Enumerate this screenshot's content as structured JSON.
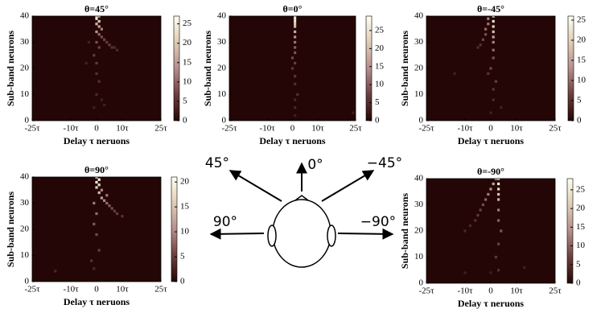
{
  "chart_data": [
    {
      "type": "heatmap",
      "title": "θ=45°",
      "xlabel": "Delay τ neruons",
      "ylabel": "Sub-band neurons",
      "xlim": [
        -25,
        25
      ],
      "ylim": [
        0,
        40
      ],
      "xticks": [
        {
          "value": -25,
          "label": "-25τ"
        },
        {
          "value": -10,
          "label": "-10τ"
        },
        0,
        {
          "value": 10,
          "label": "10τ"
        },
        {
          "value": 25,
          "label": "25τ"
        }
      ],
      "yticks": [
        0,
        10,
        20,
        30,
        40
      ],
      "clim": [
        0,
        27
      ],
      "cticks": [
        0,
        5,
        10,
        15,
        20,
        25
      ],
      "colormap": [
        "#240606",
        "#6e3e3e",
        "#b58e8e",
        "#e0cdb4",
        "#fffff2"
      ],
      "x": [
        0,
        1,
        0,
        1,
        0,
        1,
        2,
        0,
        1,
        2,
        3,
        4,
        5,
        6,
        7,
        8,
        0,
        1,
        -1,
        0,
        0,
        1,
        0,
        2,
        -1,
        3,
        -3,
        -4
      ],
      "y": [
        40,
        40,
        39,
        38,
        37,
        36,
        35,
        34,
        33,
        32,
        31,
        30,
        29,
        28,
        28,
        27,
        30,
        28,
        25,
        22,
        18,
        15,
        10,
        8,
        5,
        6,
        30,
        22
      ],
      "values": [
        25,
        22,
        24,
        20,
        18,
        16,
        12,
        14,
        10,
        8,
        7,
        6,
        6,
        5,
        4,
        4,
        8,
        7,
        6,
        6,
        5,
        5,
        4,
        3,
        3,
        3,
        3,
        3
      ]
    },
    {
      "type": "heatmap",
      "title": "θ=0°",
      "xlabel": "Delay τ neruons",
      "ylabel": "Sub-band neurons",
      "xlim": [
        -25,
        25
      ],
      "ylim": [
        0,
        40
      ],
      "xticks": [
        {
          "value": -25,
          "label": "-25τ"
        },
        {
          "value": -10,
          "label": "-10τ"
        },
        0,
        {
          "value": 10,
          "label": "10τ"
        },
        {
          "value": 25,
          "label": "25τ"
        }
      ],
      "yticks": [
        0,
        10,
        20,
        30,
        40
      ],
      "clim": [
        0,
        29
      ],
      "cticks": [
        0,
        5,
        10,
        15,
        20,
        25
      ],
      "colormap": [
        "#240606",
        "#6e3e3e",
        "#b58e8e",
        "#e0cdb4",
        "#fffff2"
      ],
      "x": [
        1,
        1,
        1,
        1,
        1,
        1,
        1,
        1,
        1,
        1,
        0,
        1,
        0,
        1,
        1,
        2,
        1,
        1,
        1,
        24
      ],
      "y": [
        40,
        39,
        38,
        37,
        36,
        34,
        32,
        30,
        28,
        26,
        24,
        22,
        20,
        17,
        14,
        10,
        8,
        5,
        2,
        3
      ],
      "values": [
        28,
        26,
        25,
        22,
        20,
        18,
        15,
        12,
        10,
        9,
        8,
        7,
        6,
        6,
        5,
        5,
        4,
        4,
        3,
        3
      ]
    },
    {
      "type": "heatmap",
      "title": "θ=-45°",
      "xlabel": "Delay τ neruons",
      "ylabel": "Sub-band neurons",
      "xlim": [
        -25,
        25
      ],
      "ylim": [
        0,
        40
      ],
      "xticks": [
        {
          "value": -25,
          "label": "-25τ"
        },
        {
          "value": -10,
          "label": "-10τ"
        },
        0,
        {
          "value": 10,
          "label": "10τ"
        },
        {
          "value": 25,
          "label": "25τ"
        }
      ],
      "yticks": [
        0,
        10,
        20,
        30,
        40
      ],
      "clim": [
        0,
        26
      ],
      "cticks": [
        0,
        5,
        10,
        15,
        20,
        25
      ],
      "colormap": [
        "#240606",
        "#6e3e3e",
        "#b58e8e",
        "#e0cdb4",
        "#fffff2"
      ],
      "x": [
        1,
        1,
        1,
        1,
        1,
        -1,
        -1,
        -2,
        -2,
        -3,
        -4,
        -5,
        1,
        1,
        1,
        0,
        2,
        -1,
        1,
        1,
        0,
        -14,
        4
      ],
      "y": [
        40,
        38,
        36,
        34,
        32,
        39,
        37,
        35,
        33,
        31,
        29,
        28,
        30,
        27,
        24,
        20,
        15,
        18,
        12,
        8,
        3,
        18,
        5
      ],
      "values": [
        25,
        22,
        20,
        18,
        15,
        12,
        11,
        10,
        8,
        7,
        5,
        4,
        12,
        10,
        8,
        7,
        6,
        5,
        5,
        4,
        3,
        3,
        3
      ]
    },
    {
      "type": "heatmap",
      "title": "θ=90°",
      "xlabel": "Delay τ neruons",
      "ylabel": "Sub-band neurons",
      "xlim": [
        -25,
        25
      ],
      "ylim": [
        0,
        40
      ],
      "xticks": [
        {
          "value": -25,
          "label": "-25τ"
        },
        {
          "value": -10,
          "label": "-10τ"
        },
        0,
        {
          "value": 10,
          "label": "10τ"
        },
        {
          "value": 25,
          "label": "25τ"
        }
      ],
      "yticks": [
        0,
        10,
        20,
        30,
        40
      ],
      "clim": [
        0,
        21
      ],
      "cticks": [
        0,
        5,
        10,
        15,
        20
      ],
      "colormap": [
        "#240606",
        "#6e3e3e",
        "#b58e8e",
        "#e0cdb4",
        "#fffff2"
      ],
      "x": [
        0,
        1,
        0,
        1,
        0,
        1,
        2,
        3,
        4,
        5,
        6,
        7,
        8,
        10,
        -1,
        0,
        -1,
        0,
        1,
        -2,
        -1,
        -16,
        2,
        4
      ],
      "y": [
        40,
        39,
        38,
        37,
        36,
        34,
        32,
        31,
        30,
        29,
        28,
        27,
        26,
        25,
        30,
        26,
        22,
        18,
        12,
        8,
        5,
        4,
        35,
        33
      ],
      "values": [
        21,
        20,
        19,
        17,
        16,
        14,
        12,
        10,
        8,
        7,
        6,
        5,
        5,
        4,
        9,
        8,
        7,
        6,
        5,
        4,
        3,
        3,
        10,
        9
      ]
    },
    {
      "type": "heatmap",
      "title": "θ=-90°",
      "xlabel": "Delay τ neruons",
      "ylabel": "Sub-band neurons",
      "xlim": [
        -25,
        25
      ],
      "ylim": [
        0,
        40
      ],
      "xticks": [
        {
          "value": -25,
          "label": "-25τ"
        },
        {
          "value": -10,
          "label": "-10τ"
        },
        0,
        {
          "value": 10,
          "label": "10τ"
        },
        {
          "value": 25,
          "label": "25τ"
        }
      ],
      "yticks": [
        0,
        10,
        20,
        30,
        40
      ],
      "clim": [
        0,
        28
      ],
      "cticks": [
        0,
        5,
        10,
        15,
        20,
        25
      ],
      "colormap": [
        "#240606",
        "#6e3e3e",
        "#b58e8e",
        "#e0cdb4",
        "#fffff2"
      ],
      "x": [
        3,
        3,
        3,
        3,
        3,
        2,
        1,
        0,
        -1,
        -2,
        -3,
        -4,
        -5,
        -6,
        -8,
        -10,
        3,
        3,
        4,
        3,
        2,
        3,
        0,
        -10,
        13
      ],
      "y": [
        40,
        38,
        36,
        34,
        32,
        40,
        38,
        36,
        34,
        32,
        30,
        28,
        26,
        24,
        22,
        20,
        28,
        24,
        20,
        15,
        10,
        5,
        4,
        4,
        6
      ],
      "values": [
        27,
        25,
        22,
        20,
        18,
        20,
        16,
        14,
        12,
        10,
        8,
        7,
        6,
        5,
        4,
        4,
        12,
        10,
        9,
        7,
        6,
        5,
        3,
        3,
        3
      ]
    }
  ],
  "diagram": {
    "labels": [
      "45°",
      "0°",
      "−45°",
      "90°",
      "−90°"
    ]
  }
}
